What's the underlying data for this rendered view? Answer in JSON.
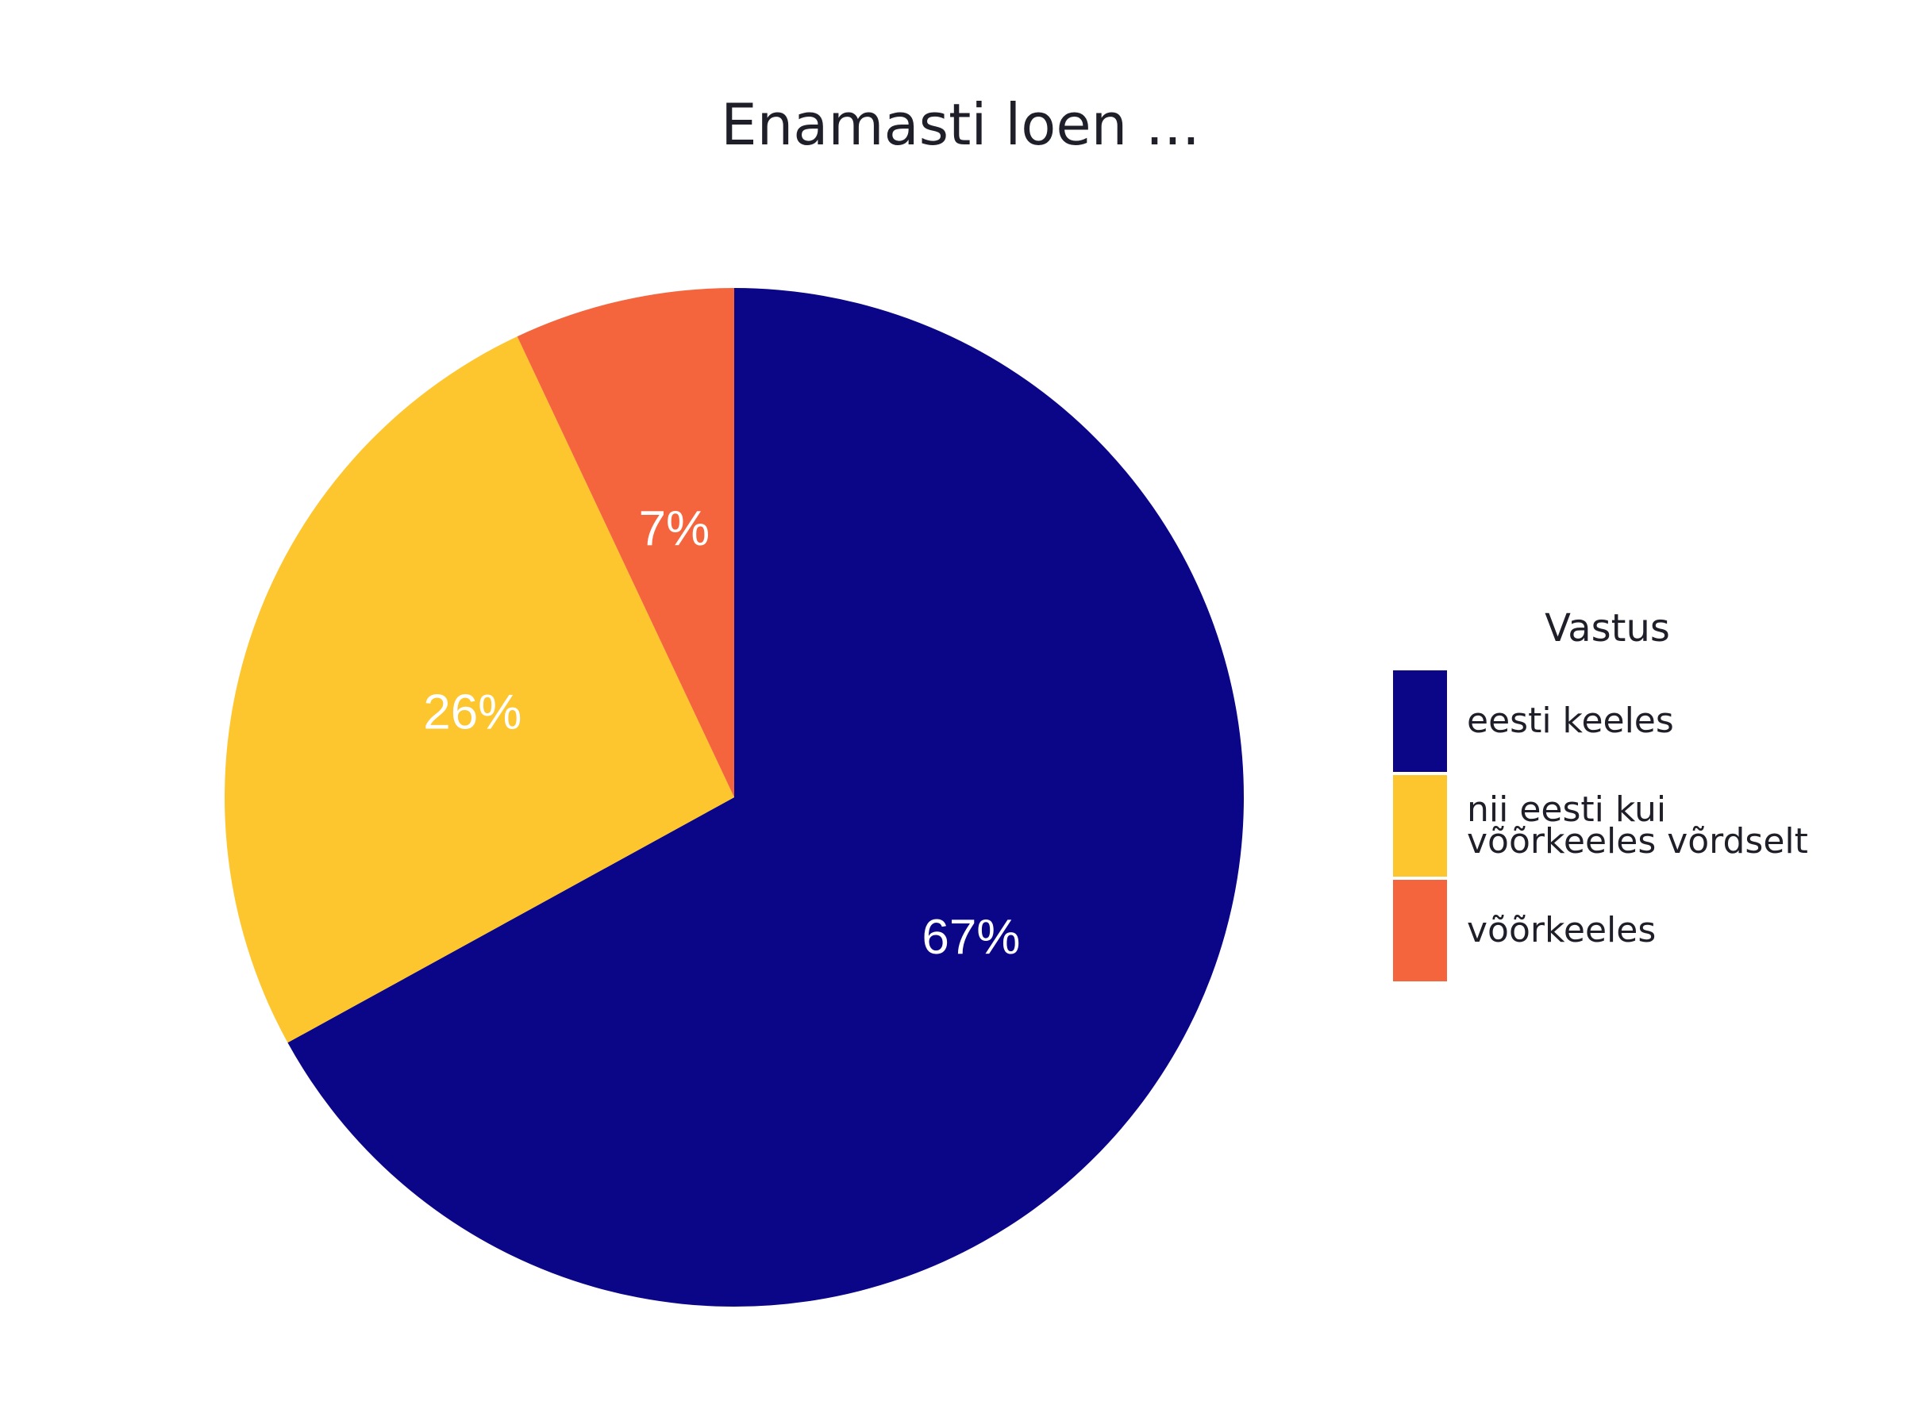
{
  "chart_data": {
    "type": "pie",
    "title": "Enamasti loen ...",
    "legend_title": "Vastus",
    "legend_position": "right",
    "start_angle_deg": 0,
    "direction": "clockwise",
    "slices": [
      {
        "label": "eesti keeles",
        "value": 67,
        "value_label": "67%",
        "color": "#0a0687"
      },
      {
        "label": "nii eesti kui võõrkeeles võrdselt",
        "legend_lines": [
          "nii eesti kui",
          "võõrkeeles võrdselt"
        ],
        "value": 26,
        "value_label": "26%",
        "color": "#fdc52e"
      },
      {
        "label": "võõrkeeles",
        "value": 7,
        "value_label": "7%",
        "color": "#f5653d"
      }
    ]
  }
}
